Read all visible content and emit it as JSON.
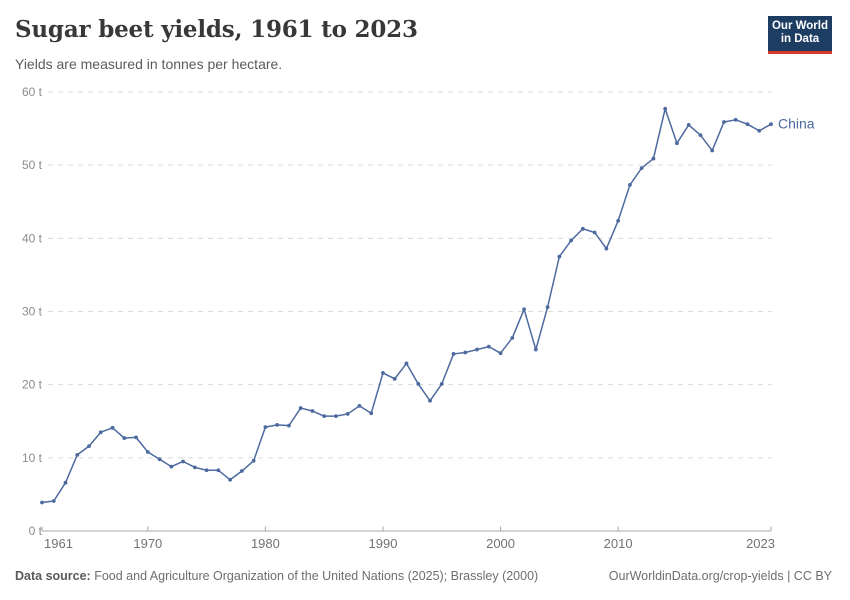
{
  "header": {
    "title": "Sugar beet yields, 1961 to 2023",
    "subtitle": "Yields are measured in tonnes per hectare.",
    "logo": {
      "line1": "Our World",
      "line2": "in Data",
      "bg_color": "#1d3d63",
      "accent_color": "#d7382e"
    }
  },
  "chart_data": {
    "type": "line",
    "title": "Sugar beet yields, 1961 to 2023",
    "subtitle": "Yields are measured in tonnes per hectare.",
    "unit": "t",
    "ylabel": "tonnes per hectare",
    "xlabel": "",
    "xlim": [
      1961,
      2023
    ],
    "ylim": [
      0,
      60
    ],
    "x_ticks": [
      1961,
      1970,
      1980,
      1990,
      2000,
      2010,
      2023
    ],
    "y_ticks": [
      0,
      10,
      20,
      30,
      40,
      50,
      60
    ],
    "grid": "horizontal-dashed",
    "legend_position": "end-of-line",
    "colors": {
      "grid": "#dcdcdc",
      "axis": "#a8a8a8"
    },
    "series": [
      {
        "name": "China",
        "color": "#4c6a9f",
        "x": [
          1961,
          1962,
          1963,
          1964,
          1965,
          1966,
          1967,
          1968,
          1969,
          1970,
          1971,
          1972,
          1973,
          1974,
          1975,
          1976,
          1977,
          1978,
          1979,
          1980,
          1981,
          1982,
          1983,
          1984,
          1985,
          1986,
          1987,
          1988,
          1989,
          1990,
          1991,
          1992,
          1993,
          1994,
          1995,
          1996,
          1997,
          1998,
          1999,
          2000,
          2001,
          2002,
          2003,
          2004,
          2005,
          2006,
          2007,
          2008,
          2009,
          2010,
          2011,
          2012,
          2013,
          2014,
          2015,
          2016,
          2017,
          2018,
          2019,
          2020,
          2021,
          2022,
          2023
        ],
        "values": [
          3.9,
          4.1,
          6.6,
          10.4,
          11.6,
          13.5,
          14.1,
          12.7,
          12.8,
          10.8,
          9.8,
          8.8,
          9.5,
          8.7,
          8.3,
          8.3,
          7.0,
          8.2,
          9.6,
          14.2,
          14.5,
          14.4,
          16.8,
          16.4,
          15.7,
          15.7,
          16.0,
          17.1,
          16.1,
          21.6,
          20.8,
          22.9,
          20.1,
          17.8,
          20.1,
          24.2,
          24.4,
          24.8,
          25.2,
          24.3,
          26.4,
          30.3,
          24.8,
          30.6,
          37.5,
          39.7,
          41.3,
          40.8,
          38.6,
          42.4,
          47.3,
          49.6,
          50.9,
          57.7,
          53.0,
          55.5,
          54.1,
          52.0,
          55.9,
          56.2,
          55.6,
          54.7,
          55.6
        ]
      }
    ]
  },
  "footer": {
    "source_label": "Data source:",
    "source_text": " Food and Agriculture Organization of the United Nations (2025); Brassley (2000)",
    "link_text": "OurWorldinData.org/crop-yields | CC BY"
  }
}
